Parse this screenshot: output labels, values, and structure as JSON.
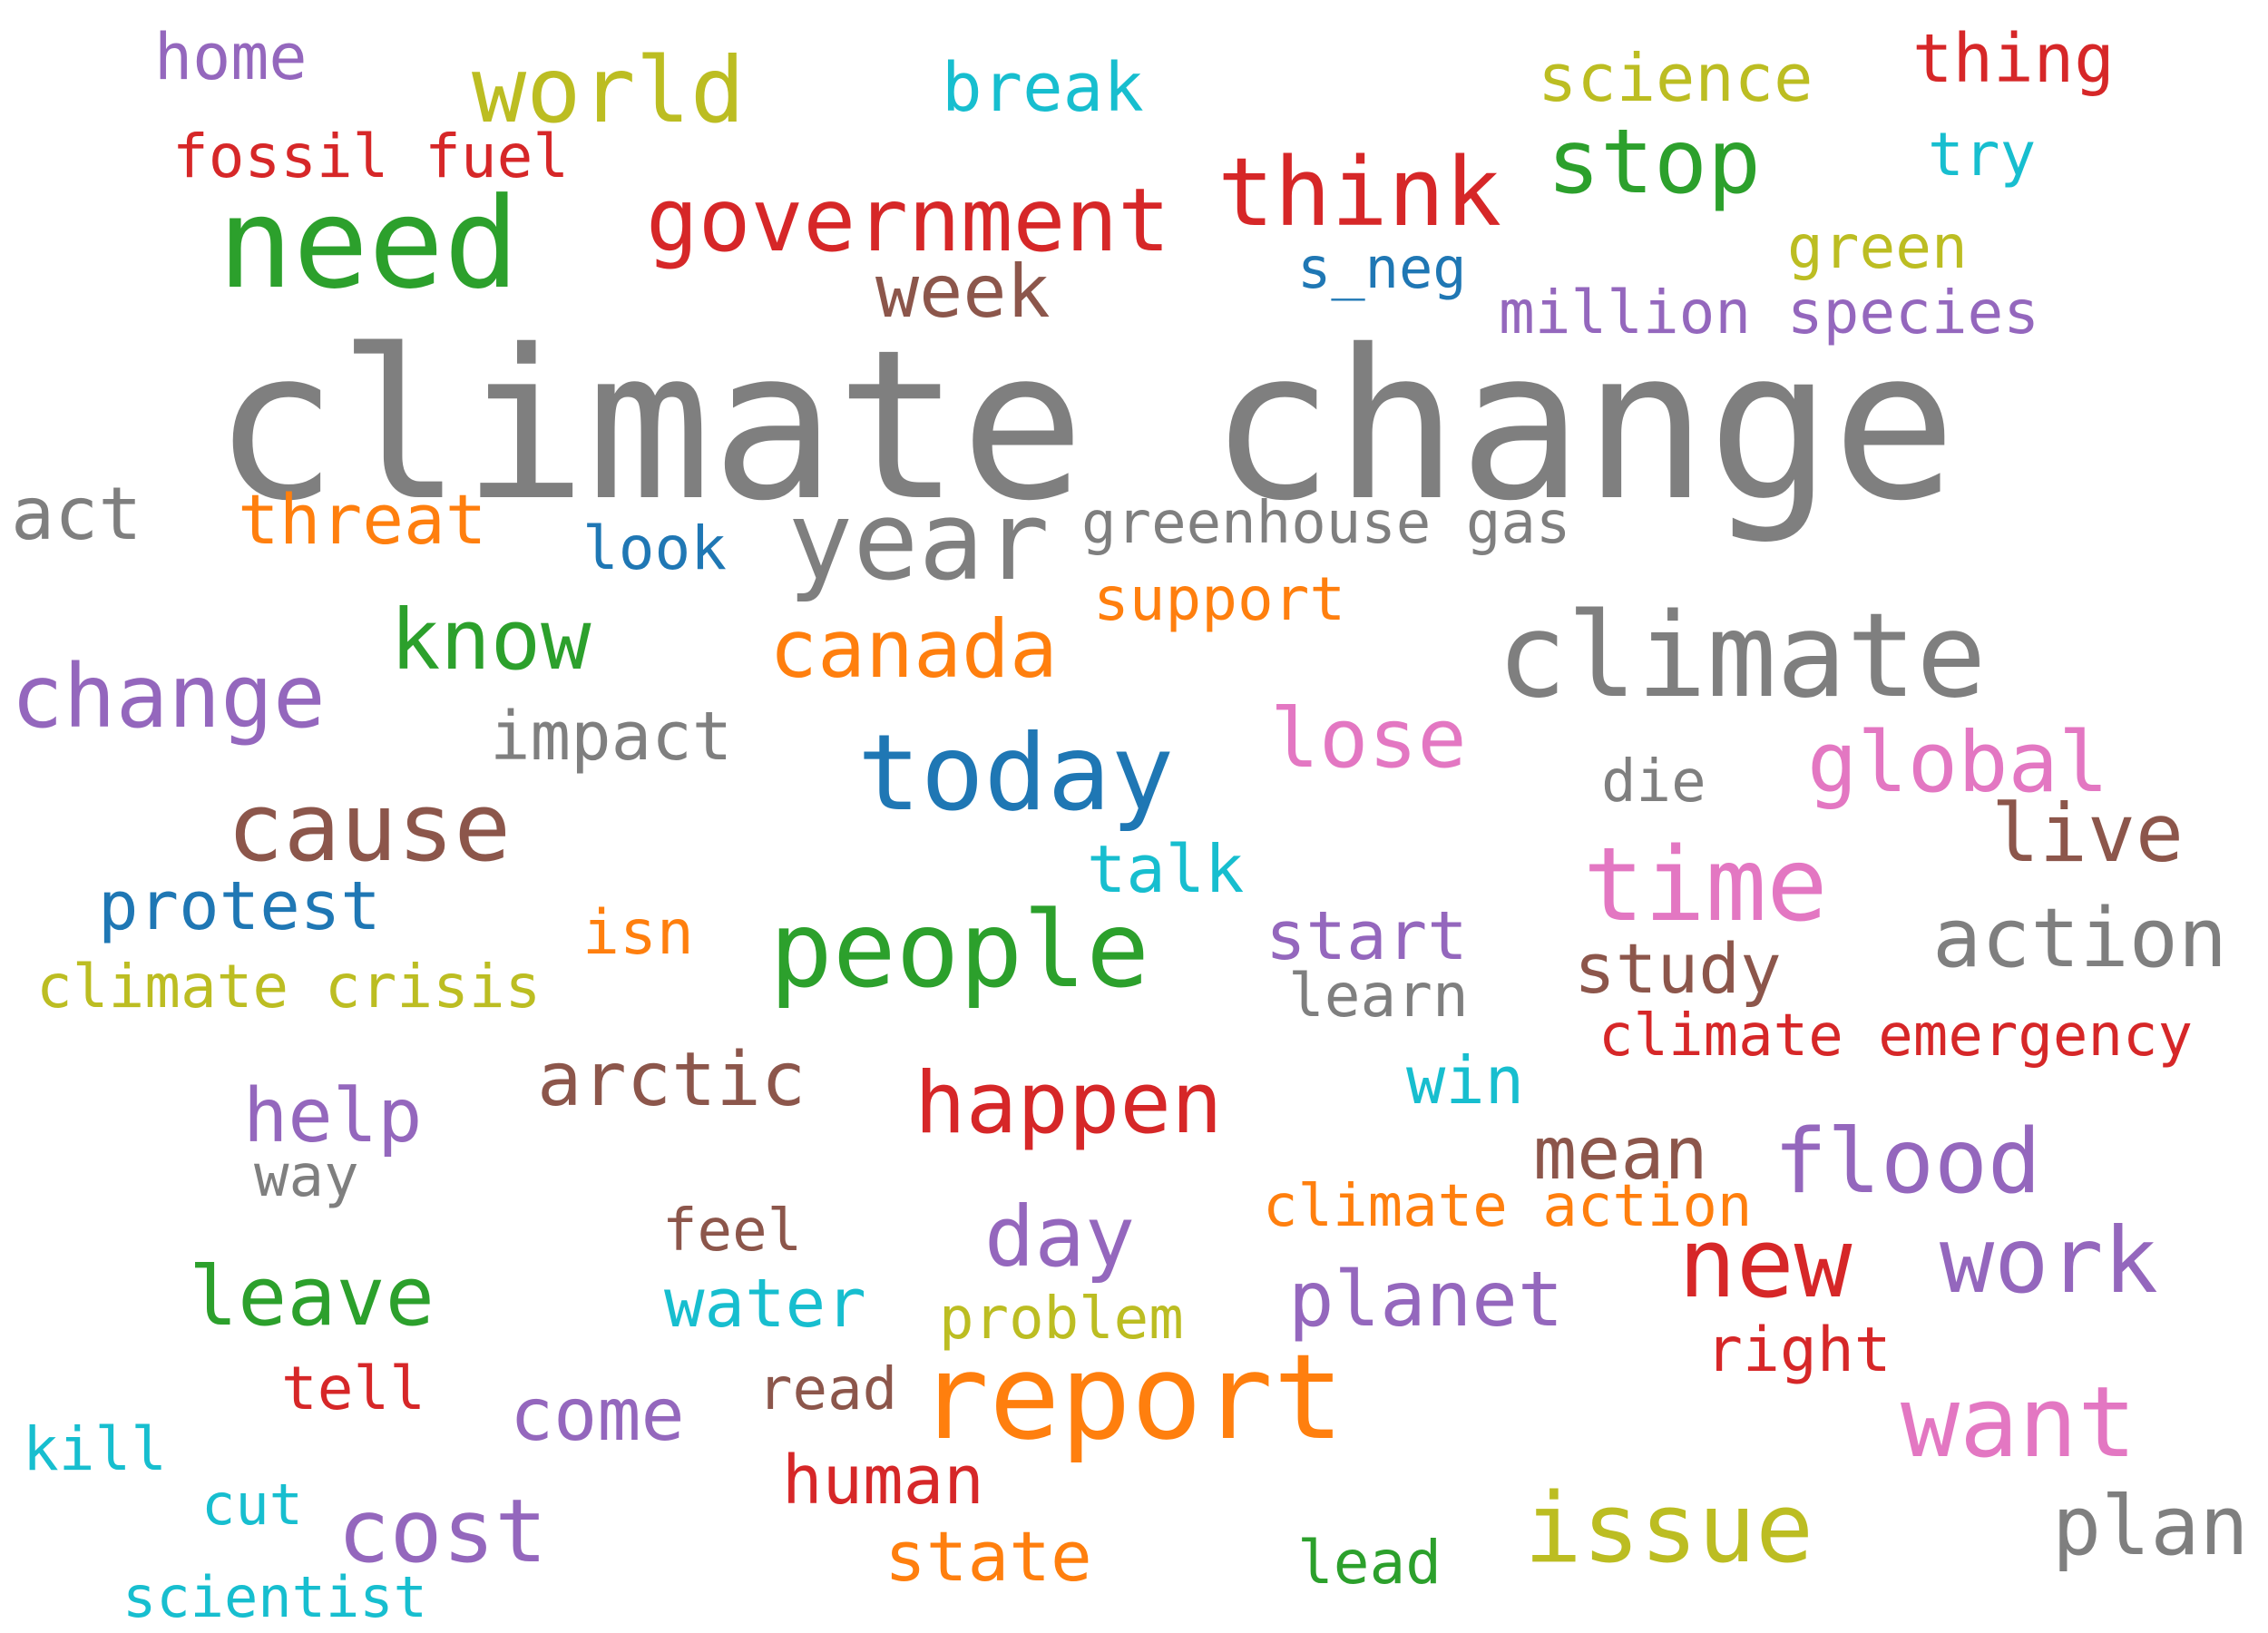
{
  "words": [
    {
      "text": "climate change",
      "color": "#7f7f7f"
    },
    {
      "text": "year",
      "color": "#7f7f7f"
    },
    {
      "text": "climate",
      "color": "#7f7f7f"
    },
    {
      "text": "need",
      "color": "#2ca02c"
    },
    {
      "text": "report",
      "color": "#ff7f0e"
    },
    {
      "text": "today",
      "color": "#1f77b4"
    },
    {
      "text": "people",
      "color": "#2ca02c"
    },
    {
      "text": "government",
      "color": "#d62728"
    },
    {
      "text": "world",
      "color": "#bcbd22"
    },
    {
      "text": "think",
      "color": "#d62728"
    },
    {
      "text": "cause",
      "color": "#8c564b"
    },
    {
      "text": "time",
      "color": "#e377c2"
    },
    {
      "text": "change",
      "color": "#9467bd"
    },
    {
      "text": "issue",
      "color": "#bcbd22"
    },
    {
      "text": "stop",
      "color": "#2ca02c"
    },
    {
      "text": "want",
      "color": "#e377c2"
    },
    {
      "text": "new",
      "color": "#d62728"
    },
    {
      "text": "flood",
      "color": "#9467bd"
    },
    {
      "text": "action",
      "color": "#7f7f7f"
    },
    {
      "text": "canada",
      "color": "#ff7f0e"
    },
    {
      "text": "happen",
      "color": "#d62728"
    },
    {
      "text": "work",
      "color": "#9467bd"
    },
    {
      "text": "global",
      "color": "#e377c2"
    },
    {
      "text": "lose",
      "color": "#e377c2"
    },
    {
      "text": "know",
      "color": "#2ca02c"
    },
    {
      "text": "cost",
      "color": "#9467bd"
    },
    {
      "text": "plan",
      "color": "#7f7f7f"
    },
    {
      "text": "live",
      "color": "#8c564b"
    },
    {
      "text": "arctic",
      "color": "#8c564b"
    },
    {
      "text": "leave",
      "color": "#2ca02c"
    },
    {
      "text": "day",
      "color": "#9467bd"
    },
    {
      "text": "planet",
      "color": "#9467bd"
    },
    {
      "text": "week",
      "color": "#8c564b"
    },
    {
      "text": "help",
      "color": "#9467bd"
    },
    {
      "text": "mean",
      "color": "#8c564b"
    },
    {
      "text": "impact",
      "color": "#7f7f7f"
    },
    {
      "text": "threat",
      "color": "#ff7f0e"
    },
    {
      "text": "act",
      "color": "#7f7f7f"
    },
    {
      "text": "study",
      "color": "#8c564b"
    },
    {
      "text": "start",
      "color": "#9467bd"
    },
    {
      "text": "come",
      "color": "#9467bd"
    },
    {
      "text": "protest",
      "color": "#1f77b4"
    },
    {
      "text": "water",
      "color": "#17becf"
    },
    {
      "text": "break",
      "color": "#17becf"
    },
    {
      "text": "science",
      "color": "#bcbd22"
    },
    {
      "text": "thing",
      "color": "#d62728"
    },
    {
      "text": "home",
      "color": "#9467bd"
    },
    {
      "text": "human",
      "color": "#d62728"
    },
    {
      "text": "state",
      "color": "#ff7f0e"
    },
    {
      "text": "talk",
      "color": "#17becf"
    },
    {
      "text": "win",
      "color": "#17becf"
    },
    {
      "text": "greenhouse gas",
      "color": "#7f7f7f"
    },
    {
      "text": "support",
      "color": "#ff7f0e"
    },
    {
      "text": "million species",
      "color": "#9467bd"
    },
    {
      "text": "fossil fuel",
      "color": "#d62728"
    },
    {
      "text": "climate crisis",
      "color": "#bcbd22"
    },
    {
      "text": "climate emergency",
      "color": "#d62728"
    },
    {
      "text": "climate action",
      "color": "#ff7f0e"
    },
    {
      "text": "look",
      "color": "#1f77b4"
    },
    {
      "text": "green",
      "color": "#bcbd22"
    },
    {
      "text": "s_neg",
      "color": "#1f77b4"
    },
    {
      "text": "try",
      "color": "#17becf"
    },
    {
      "text": "learn",
      "color": "#7f7f7f"
    },
    {
      "text": "isn",
      "color": "#ff7f0e"
    },
    {
      "text": "die",
      "color": "#7f7f7f"
    },
    {
      "text": "way",
      "color": "#7f7f7f"
    },
    {
      "text": "feel",
      "color": "#8c564b"
    },
    {
      "text": "problem",
      "color": "#bcbd22"
    },
    {
      "text": "right",
      "color": "#d62728"
    },
    {
      "text": "read",
      "color": "#8c564b"
    },
    {
      "text": "tell",
      "color": "#d62728"
    },
    {
      "text": "kill",
      "color": "#17becf"
    },
    {
      "text": "cut",
      "color": "#17becf"
    },
    {
      "text": "scientist",
      "color": "#17becf"
    },
    {
      "text": "lead",
      "color": "#2ca02c"
    }
  ]
}
